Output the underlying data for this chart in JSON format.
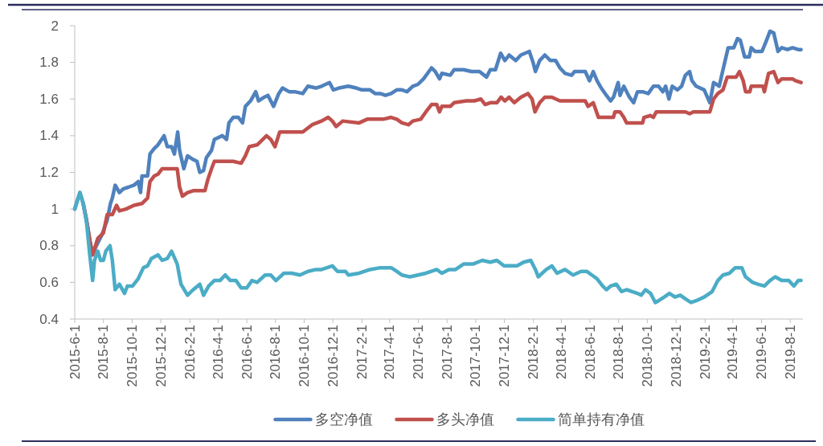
{
  "chart_data": {
    "type": "line",
    "xlim": [
      "2015-06-01",
      "2019-08-28"
    ],
    "xticks": [
      {
        "value": "2015-06-01",
        "label": "2015-6-1"
      },
      {
        "value": "2015-08-01",
        "label": "2015-8-1"
      },
      {
        "value": "2015-10-01",
        "label": "2015-10-1"
      },
      {
        "value": "2015-12-01",
        "label": "2015-12-1"
      },
      {
        "value": "2016-02-01",
        "label": "2016-2-1"
      },
      {
        "value": "2016-04-01",
        "label": "2016-4-1"
      },
      {
        "value": "2016-06-01",
        "label": "2016-6-1"
      },
      {
        "value": "2016-08-01",
        "label": "2016-8-1"
      },
      {
        "value": "2016-10-01",
        "label": "2016-10-1"
      },
      {
        "value": "2016-12-01",
        "label": "2016-12-1"
      },
      {
        "value": "2017-02-01",
        "label": "2017-2-1"
      },
      {
        "value": "2017-04-01",
        "label": "2017-4-1"
      },
      {
        "value": "2017-06-01",
        "label": "2017-6-1"
      },
      {
        "value": "2017-08-01",
        "label": "2017-8-1"
      },
      {
        "value": "2017-10-01",
        "label": "2017-10-1"
      },
      {
        "value": "2017-12-01",
        "label": "2017-12-1"
      },
      {
        "value": "2018-02-01",
        "label": "2018-2-1"
      },
      {
        "value": "2018-04-01",
        "label": "2018-4-1"
      },
      {
        "value": "2018-06-01",
        "label": "2018-6-1"
      },
      {
        "value": "2018-08-01",
        "label": "2018-8-1"
      },
      {
        "value": "2018-10-01",
        "label": "2018-10-1"
      },
      {
        "value": "2018-12-01",
        "label": "2018-12-1"
      },
      {
        "value": "2019-02-01",
        "label": "2019-2-1"
      },
      {
        "value": "2019-04-01",
        "label": "2019-4-1"
      },
      {
        "value": "2019-06-01",
        "label": "2019-6-1"
      },
      {
        "value": "2019-08-01",
        "label": "2019-8-1"
      }
    ],
    "ylim": [
      0.4,
      2
    ],
    "yticks": [
      0.4,
      0.6,
      0.8,
      1,
      1.2,
      1.4,
      1.6,
      1.8,
      2
    ],
    "legend": "bottom",
    "series": [
      {
        "name": "多空净值",
        "color": "#4f81bd",
        "x": [
          "2015-06-01",
          "2015-06-07",
          "2015-06-12",
          "2015-06-19",
          "2015-06-26",
          "2015-07-03",
          "2015-07-09",
          "2015-07-17",
          "2015-07-29",
          "2015-08-09",
          "2015-08-16",
          "2015-08-20",
          "2015-08-26",
          "2015-09-04",
          "2015-09-12",
          "2015-09-24",
          "2015-10-05",
          "2015-10-14",
          "2015-10-19",
          "2015-10-22",
          "2015-11-03",
          "2015-11-08",
          "2015-11-17",
          "2015-11-25",
          "2015-12-08",
          "2015-12-15",
          "2015-12-24",
          "2015-12-30",
          "2016-01-06",
          "2016-01-10",
          "2016-01-19",
          "2016-01-27",
          "2016-02-08",
          "2016-02-16",
          "2016-02-22",
          "2016-03-01",
          "2016-03-07",
          "2016-03-18",
          "2016-03-24",
          "2016-04-10",
          "2016-04-19",
          "2016-04-24",
          "2016-05-03",
          "2016-05-14",
          "2016-05-23",
          "2016-05-29",
          "2016-06-09",
          "2016-06-20",
          "2016-06-26",
          "2016-07-08",
          "2016-07-16",
          "2016-07-28",
          "2016-08-08",
          "2016-08-16",
          "2016-08-30",
          "2016-09-11",
          "2016-09-28",
          "2016-10-09",
          "2016-10-26",
          "2016-11-07",
          "2016-11-24",
          "2016-12-02",
          "2016-12-14",
          "2017-01-03",
          "2017-01-20",
          "2017-02-01",
          "2017-02-18",
          "2017-03-01",
          "2017-03-12",
          "2017-03-23",
          "2017-04-04",
          "2017-04-16",
          "2017-04-27",
          "2017-05-08",
          "2017-05-20",
          "2017-05-31",
          "2017-06-12",
          "2017-06-29",
          "2017-07-07",
          "2017-07-16",
          "2017-07-21",
          "2017-08-08",
          "2017-08-16",
          "2017-09-05",
          "2017-09-22",
          "2017-10-09",
          "2017-10-24",
          "2017-11-01",
          "2017-11-12",
          "2017-11-23",
          "2017-12-02",
          "2017-12-11",
          "2017-12-25",
          "2018-01-05",
          "2018-01-23",
          "2018-01-31",
          "2018-02-05",
          "2018-02-14",
          "2018-02-25",
          "2018-03-09",
          "2018-03-20",
          "2018-03-29",
          "2018-04-09",
          "2018-04-23",
          "2018-04-29",
          "2018-05-22",
          "2018-05-31",
          "2018-06-08",
          "2018-06-16",
          "2018-06-25",
          "2018-07-06",
          "2018-07-15",
          "2018-07-21",
          "2018-07-31",
          "2018-08-04",
          "2018-08-12",
          "2018-08-24",
          "2018-09-02",
          "2018-09-10",
          "2018-09-21",
          "2018-10-03",
          "2018-10-14",
          "2018-10-25",
          "2018-11-03",
          "2018-11-09",
          "2018-11-16",
          "2018-11-23",
          "2018-12-04",
          "2018-12-13",
          "2018-12-21",
          "2018-12-30",
          "2019-01-04",
          "2019-01-13",
          "2019-01-30",
          "2019-02-11",
          "2019-02-19",
          "2019-03-03",
          "2019-03-11",
          "2019-03-22",
          "2019-04-03",
          "2019-04-11",
          "2019-04-17",
          "2019-04-26",
          "2019-05-06",
          "2019-05-10",
          "2019-05-18",
          "2019-06-02",
          "2019-06-10",
          "2019-06-19",
          "2019-06-27",
          "2019-07-06",
          "2019-07-14",
          "2019-07-26",
          "2019-08-06",
          "2019-08-18",
          "2019-08-24"
        ],
        "values": [
          1.0,
          1.05,
          1.09,
          1.03,
          0.94,
          0.83,
          0.75,
          0.8,
          0.86,
          0.94,
          1.03,
          1.06,
          1.13,
          1.09,
          1.11,
          1.12,
          1.13,
          1.15,
          1.09,
          1.18,
          1.18,
          1.3,
          1.33,
          1.35,
          1.4,
          1.34,
          1.34,
          1.3,
          1.42,
          1.32,
          1.22,
          1.29,
          1.27,
          1.26,
          1.2,
          1.21,
          1.28,
          1.32,
          1.38,
          1.4,
          1.38,
          1.47,
          1.5,
          1.5,
          1.47,
          1.56,
          1.59,
          1.64,
          1.59,
          1.61,
          1.62,
          1.56,
          1.63,
          1.66,
          1.64,
          1.64,
          1.63,
          1.67,
          1.66,
          1.67,
          1.69,
          1.65,
          1.66,
          1.67,
          1.66,
          1.65,
          1.65,
          1.63,
          1.63,
          1.62,
          1.63,
          1.65,
          1.65,
          1.64,
          1.67,
          1.68,
          1.71,
          1.77,
          1.75,
          1.71,
          1.74,
          1.73,
          1.76,
          1.76,
          1.75,
          1.75,
          1.72,
          1.76,
          1.76,
          1.85,
          1.81,
          1.84,
          1.81,
          1.84,
          1.86,
          1.8,
          1.75,
          1.81,
          1.84,
          1.81,
          1.81,
          1.77,
          1.74,
          1.73,
          1.75,
          1.75,
          1.7,
          1.75,
          1.7,
          1.66,
          1.62,
          1.59,
          1.61,
          1.69,
          1.62,
          1.67,
          1.61,
          1.58,
          1.64,
          1.64,
          1.63,
          1.67,
          1.67,
          1.64,
          1.67,
          1.6,
          1.67,
          1.65,
          1.67,
          1.73,
          1.75,
          1.7,
          1.67,
          1.65,
          1.58,
          1.69,
          1.67,
          1.76,
          1.88,
          1.88,
          1.93,
          1.92,
          1.83,
          1.83,
          1.88,
          1.86,
          1.86,
          1.91,
          1.97,
          1.96,
          1.86,
          1.88,
          1.87,
          1.88,
          1.87,
          1.87
        ]
      },
      {
        "name": "多头净值",
        "color": "#c0504d",
        "x": [
          "2015-06-19",
          "2015-06-26",
          "2015-07-03",
          "2015-07-09",
          "2015-07-20",
          "2015-08-01",
          "2015-08-09",
          "2015-08-20",
          "2015-08-29",
          "2015-09-04",
          "2015-09-18",
          "2015-10-05",
          "2015-10-22",
          "2015-11-03",
          "2015-11-08",
          "2015-11-17",
          "2015-11-25",
          "2015-12-04",
          "2015-12-18",
          "2016-01-05",
          "2016-01-10",
          "2016-01-16",
          "2016-01-27",
          "2016-02-08",
          "2016-03-04",
          "2016-03-10",
          "2016-03-18",
          "2016-03-24",
          "2016-04-10",
          "2016-05-03",
          "2016-05-20",
          "2016-05-29",
          "2016-06-06",
          "2016-06-23",
          "2016-07-13",
          "2016-07-22",
          "2016-07-31",
          "2016-08-10",
          "2016-08-30",
          "2016-09-28",
          "2016-10-18",
          "2016-11-07",
          "2016-11-21",
          "2016-11-30",
          "2016-12-08",
          "2016-12-22",
          "2017-01-26",
          "2017-02-12",
          "2017-03-18",
          "2017-04-04",
          "2017-04-16",
          "2017-04-27",
          "2017-05-11",
          "2017-05-20",
          "2017-06-06",
          "2017-06-17",
          "2017-06-29",
          "2017-07-10",
          "2017-07-16",
          "2017-07-21",
          "2017-08-08",
          "2017-08-16",
          "2017-09-11",
          "2017-09-28",
          "2017-10-12",
          "2017-10-21",
          "2017-11-01",
          "2017-11-15",
          "2017-11-24",
          "2017-12-02",
          "2017-12-11",
          "2017-12-22",
          "2018-01-05",
          "2018-01-20",
          "2018-01-29",
          "2018-02-04",
          "2018-02-14",
          "2018-02-25",
          "2018-03-12",
          "2018-03-29",
          "2018-04-26",
          "2018-05-22",
          "2018-05-28",
          "2018-06-08",
          "2018-06-19",
          "2018-07-03",
          "2018-07-21",
          "2018-07-24",
          "2018-08-04",
          "2018-08-12",
          "2018-08-18",
          "2018-09-04",
          "2018-09-21",
          "2018-09-24",
          "2018-10-08",
          "2018-10-14",
          "2018-10-20",
          "2018-11-17",
          "2018-12-21",
          "2018-12-30",
          "2019-01-07",
          "2019-02-11",
          "2019-02-19",
          "2019-02-28",
          "2019-03-11",
          "2019-03-20",
          "2019-04-08",
          "2019-04-15",
          "2019-04-23",
          "2019-04-28",
          "2019-05-07",
          "2019-05-10",
          "2019-06-04",
          "2019-06-07",
          "2019-06-16",
          "2019-06-27",
          "2019-07-06",
          "2019-07-14",
          "2019-08-06",
          "2019-08-12",
          "2019-08-24"
        ],
        "values": [
          1.03,
          0.94,
          0.83,
          0.75,
          0.84,
          0.87,
          0.97,
          0.97,
          1.02,
          0.99,
          1.0,
          1.02,
          1.03,
          1.06,
          1.15,
          1.18,
          1.19,
          1.22,
          1.22,
          1.22,
          1.12,
          1.07,
          1.09,
          1.1,
          1.1,
          1.16,
          1.22,
          1.26,
          1.26,
          1.26,
          1.25,
          1.29,
          1.34,
          1.35,
          1.4,
          1.38,
          1.34,
          1.42,
          1.42,
          1.42,
          1.46,
          1.48,
          1.5,
          1.48,
          1.45,
          1.48,
          1.47,
          1.49,
          1.49,
          1.5,
          1.49,
          1.47,
          1.46,
          1.48,
          1.49,
          1.53,
          1.57,
          1.57,
          1.53,
          1.56,
          1.56,
          1.58,
          1.59,
          1.59,
          1.6,
          1.57,
          1.58,
          1.58,
          1.61,
          1.59,
          1.61,
          1.58,
          1.61,
          1.63,
          1.6,
          1.53,
          1.58,
          1.61,
          1.61,
          1.59,
          1.59,
          1.59,
          1.56,
          1.58,
          1.5,
          1.5,
          1.5,
          1.53,
          1.53,
          1.5,
          1.47,
          1.47,
          1.47,
          1.5,
          1.51,
          1.5,
          1.53,
          1.53,
          1.53,
          1.52,
          1.53,
          1.53,
          1.6,
          1.63,
          1.65,
          1.72,
          1.72,
          1.75,
          1.7,
          1.64,
          1.64,
          1.67,
          1.67,
          1.64,
          1.74,
          1.75,
          1.69,
          1.71,
          1.71,
          1.7,
          1.69
        ]
      },
      {
        "name": "简单持有净值",
        "color": "#4bacc6",
        "x": [
          "2015-06-01",
          "2015-06-12",
          "2015-06-19",
          "2015-06-26",
          "2015-07-03",
          "2015-07-09",
          "2015-07-13",
          "2015-07-20",
          "2015-07-26",
          "2015-08-01",
          "2015-08-06",
          "2015-08-15",
          "2015-08-20",
          "2015-08-26",
          "2015-09-04",
          "2015-09-15",
          "2015-09-21",
          "2015-10-02",
          "2015-10-14",
          "2015-10-25",
          "2015-11-03",
          "2015-11-11",
          "2015-11-25",
          "2015-12-04",
          "2015-12-15",
          "2015-12-24",
          "2016-01-05",
          "2016-01-13",
          "2016-01-27",
          "2016-02-08",
          "2016-02-22",
          "2016-03-01",
          "2016-03-12",
          "2016-03-24",
          "2016-04-05",
          "2016-04-16",
          "2016-04-27",
          "2016-05-09",
          "2016-05-20",
          "2016-06-01",
          "2016-06-12",
          "2016-06-23",
          "2016-07-10",
          "2016-07-22",
          "2016-08-02",
          "2016-08-19",
          "2016-09-05",
          "2016-09-22",
          "2016-10-09",
          "2016-10-26",
          "2016-11-07",
          "2016-11-30",
          "2016-12-11",
          "2016-12-28",
          "2017-01-03",
          "2017-01-26",
          "2017-02-18",
          "2017-03-12",
          "2017-04-04",
          "2017-04-16",
          "2017-04-27",
          "2017-05-14",
          "2017-05-31",
          "2017-06-17",
          "2017-07-10",
          "2017-07-21",
          "2017-08-05",
          "2017-08-19",
          "2017-09-05",
          "2017-09-25",
          "2017-10-15",
          "2017-11-01",
          "2017-11-15",
          "2017-11-30",
          "2017-12-17",
          "2017-12-28",
          "2018-01-11",
          "2018-01-26",
          "2018-02-05",
          "2018-02-11",
          "2018-02-28",
          "2018-03-12",
          "2018-03-23",
          "2018-04-09",
          "2018-04-26",
          "2018-05-13",
          "2018-05-25",
          "2018-06-05",
          "2018-06-16",
          "2018-06-28",
          "2018-07-06",
          "2018-07-15",
          "2018-07-27",
          "2018-08-07",
          "2018-08-18",
          "2018-08-30",
          "2018-09-10",
          "2018-09-18",
          "2018-09-27",
          "2018-10-08",
          "2018-10-18",
          "2018-10-25",
          "2018-11-06",
          "2018-11-17",
          "2018-11-29",
          "2018-12-10",
          "2018-12-21",
          "2019-01-02",
          "2019-01-13",
          "2019-01-30",
          "2019-02-16",
          "2019-02-28",
          "2019-03-11",
          "2019-03-25",
          "2019-04-06",
          "2019-04-20",
          "2019-04-28",
          "2019-05-13",
          "2019-05-24",
          "2019-06-07",
          "2019-06-19",
          "2019-06-30",
          "2019-07-14",
          "2019-07-29",
          "2019-08-09",
          "2019-08-18",
          "2019-08-24"
        ],
        "values": [
          1.0,
          1.09,
          1.03,
          0.93,
          0.75,
          0.61,
          0.72,
          0.77,
          0.72,
          0.72,
          0.77,
          0.8,
          0.72,
          0.56,
          0.59,
          0.54,
          0.58,
          0.58,
          0.62,
          0.68,
          0.69,
          0.73,
          0.75,
          0.72,
          0.73,
          0.77,
          0.7,
          0.59,
          0.53,
          0.56,
          0.59,
          0.53,
          0.58,
          0.61,
          0.61,
          0.64,
          0.61,
          0.61,
          0.57,
          0.57,
          0.61,
          0.6,
          0.64,
          0.64,
          0.61,
          0.65,
          0.65,
          0.64,
          0.66,
          0.67,
          0.67,
          0.69,
          0.66,
          0.66,
          0.64,
          0.65,
          0.67,
          0.68,
          0.68,
          0.66,
          0.64,
          0.63,
          0.64,
          0.65,
          0.67,
          0.65,
          0.67,
          0.67,
          0.7,
          0.7,
          0.72,
          0.71,
          0.72,
          0.69,
          0.69,
          0.69,
          0.71,
          0.72,
          0.67,
          0.63,
          0.67,
          0.69,
          0.65,
          0.67,
          0.64,
          0.66,
          0.66,
          0.64,
          0.62,
          0.58,
          0.56,
          0.58,
          0.59,
          0.55,
          0.56,
          0.55,
          0.54,
          0.53,
          0.56,
          0.54,
          0.49,
          0.5,
          0.52,
          0.54,
          0.52,
          0.53,
          0.51,
          0.49,
          0.5,
          0.52,
          0.55,
          0.61,
          0.64,
          0.65,
          0.68,
          0.68,
          0.63,
          0.6,
          0.59,
          0.58,
          0.61,
          0.63,
          0.61,
          0.61,
          0.58,
          0.61,
          0.61
        ]
      }
    ]
  }
}
